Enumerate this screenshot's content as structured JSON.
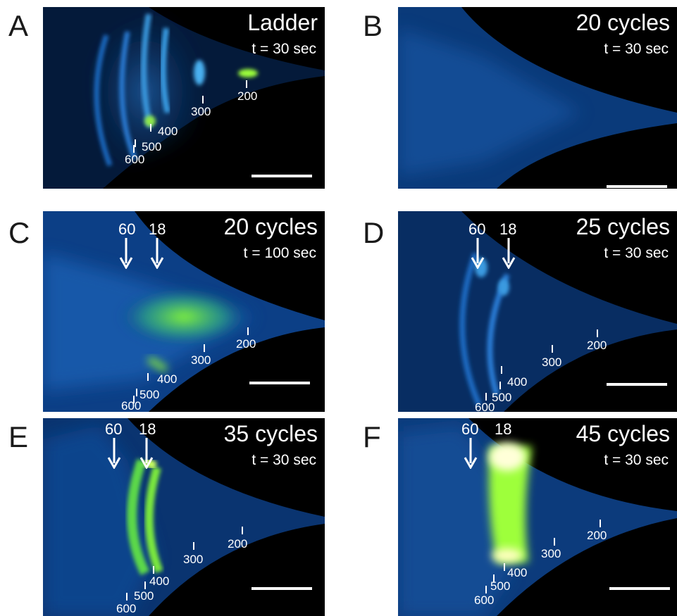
{
  "panels": {
    "a": {
      "letter": "A",
      "title": "Ladder",
      "time": "t = 30 sec",
      "markers": [
        "200",
        "300",
        "400",
        "500",
        "600"
      ]
    },
    "b": {
      "letter": "B",
      "title": "20 cycles",
      "time": "t = 30 sec"
    },
    "c": {
      "letter": "C",
      "title": "20 cycles",
      "time": "t = 100 sec",
      "arrows": [
        "60",
        "18"
      ],
      "markers": [
        "200",
        "300",
        "400",
        "500",
        "600"
      ]
    },
    "d": {
      "letter": "D",
      "title": "25 cycles",
      "time": "t = 30 sec",
      "arrows": [
        "60",
        "18"
      ],
      "markers": [
        "200",
        "300",
        "400",
        "500",
        "600"
      ]
    },
    "e": {
      "letter": "E",
      "title": "35 cycles",
      "time": "t = 30 sec",
      "arrows": [
        "60",
        "18"
      ],
      "markers": [
        "200",
        "300",
        "400",
        "500",
        "600"
      ]
    },
    "f": {
      "letter": "F",
      "title": "45 cycles",
      "time": "t = 30 sec",
      "arrows": [
        "60",
        "18"
      ],
      "markers": [
        "200",
        "300",
        "400",
        "500",
        "600"
      ]
    }
  },
  "colors": {
    "background": "#000000",
    "signal_low": "#0a3a7a",
    "signal_mid": "#1e7bd6",
    "signal_high": "#7dff2a",
    "saturated": "#ffffc8"
  }
}
